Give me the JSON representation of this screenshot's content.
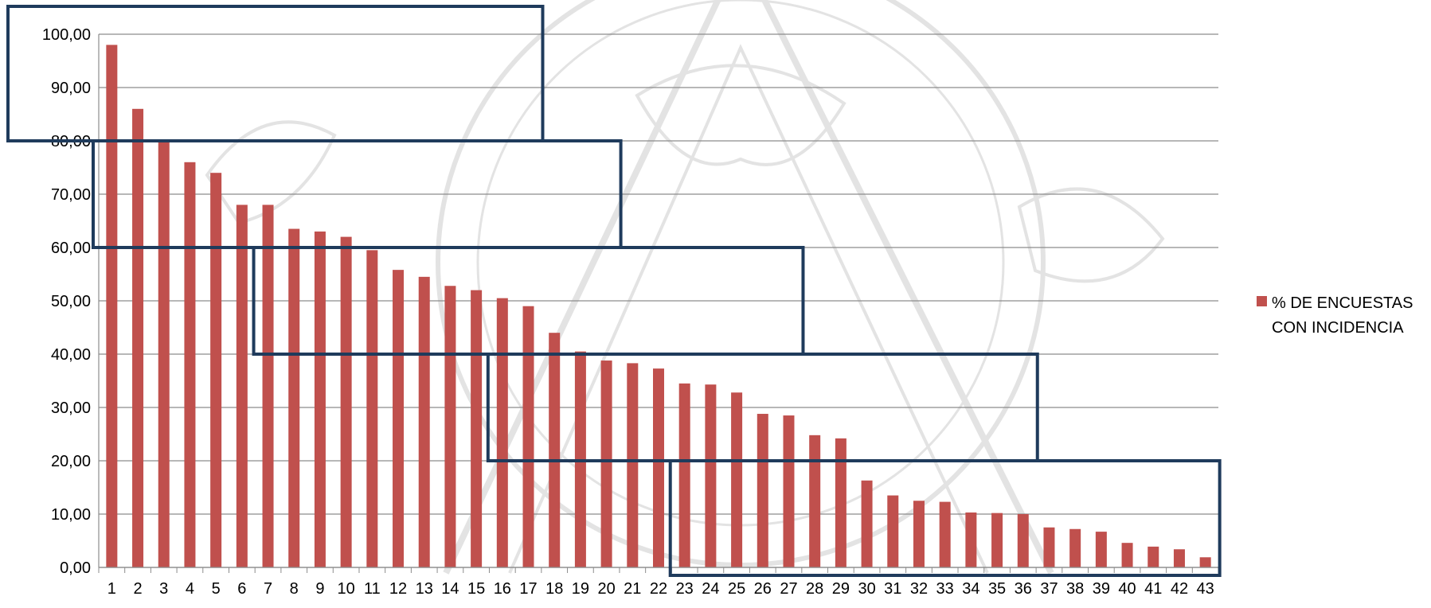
{
  "chart_data": {
    "type": "bar",
    "title": "",
    "xlabel": "",
    "ylabel": "",
    "ylim": [
      0,
      100
    ],
    "ytick_step": 10,
    "ytick_labels": [
      "0,00",
      "10,00",
      "20,00",
      "30,00",
      "40,00",
      "50,00",
      "60,00",
      "70,00",
      "80,00",
      "90,00",
      "100,00"
    ],
    "grid": "horizontal",
    "legend_position": "right",
    "categories": [
      "1",
      "2",
      "3",
      "4",
      "5",
      "6",
      "7",
      "8",
      "9",
      "10",
      "11",
      "12",
      "13",
      "14",
      "15",
      "16",
      "17",
      "18",
      "19",
      "20",
      "21",
      "22",
      "23",
      "24",
      "25",
      "26",
      "27",
      "28",
      "29",
      "30",
      "31",
      "32",
      "33",
      "34",
      "35",
      "36",
      "37",
      "38",
      "39",
      "40",
      "41",
      "42",
      "43"
    ],
    "series": [
      {
        "name": "% DE ENCUESTAS CON INCIDENCIA",
        "color": "#c0504d",
        "values": [
          98.0,
          86.0,
          80.0,
          76.0,
          74.0,
          68.0,
          68.0,
          63.5,
          63.0,
          62.0,
          59.5,
          55.8,
          54.5,
          52.8,
          52.0,
          50.5,
          49.0,
          44.0,
          40.5,
          38.8,
          38.3,
          37.3,
          34.5,
          34.3,
          32.8,
          28.8,
          28.5,
          24.8,
          24.2,
          16.3,
          13.5,
          12.5,
          12.3,
          10.3,
          10.2,
          10.0,
          7.5,
          7.2,
          6.7,
          4.6,
          3.9,
          3.4,
          1.9
        ]
      }
    ],
    "annotations": [
      {
        "type": "box",
        "from_category": "1",
        "to_category": "17",
        "y_from": 80,
        "y_to": 100,
        "color": "#1f3b5c"
      },
      {
        "type": "box",
        "from_category": "1",
        "to_category": "20",
        "y_from": 60,
        "y_to": 80,
        "color": "#1f3b5c"
      },
      {
        "type": "box",
        "from_category": "7",
        "to_category": "27",
        "y_from": 40,
        "y_to": 60,
        "color": "#1f3b5c"
      },
      {
        "type": "box",
        "from_category": "16",
        "to_category": "36",
        "y_from": 20,
        "y_to": 40,
        "color": "#1f3b5c"
      },
      {
        "type": "box",
        "from_category": "23",
        "to_category": "43",
        "y_from": 0,
        "y_to": 20,
        "color": "#1f3b5c"
      }
    ]
  }
}
